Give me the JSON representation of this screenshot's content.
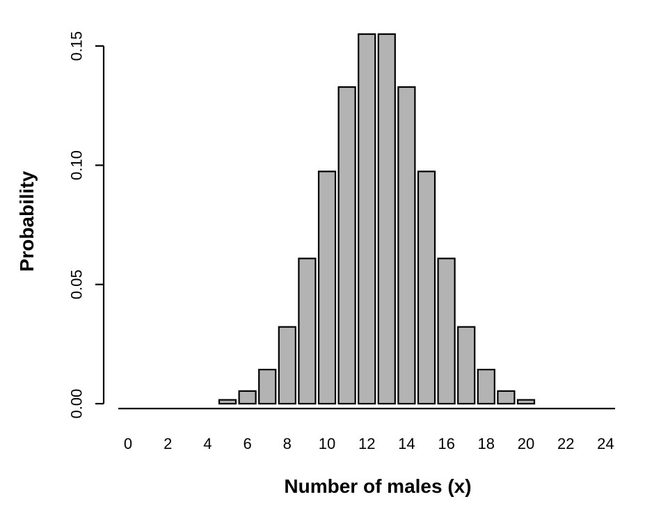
{
  "chart_data": {
    "type": "bar",
    "xlabel": "Number of males (x)",
    "ylabel": "Probability",
    "ylim": [
      0,
      0.155
    ],
    "grid": false,
    "categories": [
      "0",
      "1",
      "2",
      "3",
      "4",
      "5",
      "6",
      "7",
      "8",
      "9",
      "10",
      "11",
      "12",
      "13",
      "14",
      "15",
      "16",
      "17",
      "18",
      "19",
      "20",
      "21",
      "22",
      "23",
      "24",
      "25"
    ],
    "x_tick_labels": [
      "0",
      "2",
      "4",
      "6",
      "8",
      "10",
      "12",
      "14",
      "16",
      "18",
      "20",
      "22",
      "24"
    ],
    "y_ticks": [
      0.0,
      0.05,
      0.1,
      0.15
    ],
    "y_tick_labels": [
      "0.00",
      "0.05",
      "0.10",
      "0.15"
    ],
    "values": [
      0.0,
      0.0,
      0.0,
      0.0,
      0.0,
      0.0016,
      0.0053,
      0.0143,
      0.0322,
      0.0609,
      0.0974,
      0.1328,
      0.155,
      0.155,
      0.1328,
      0.0974,
      0.0609,
      0.0322,
      0.0143,
      0.0053,
      0.0016,
      0.0,
      0.0,
      0.0,
      0.0,
      0.0
    ],
    "bar_color": "#b3b3b3",
    "edge_color": "#000000"
  }
}
